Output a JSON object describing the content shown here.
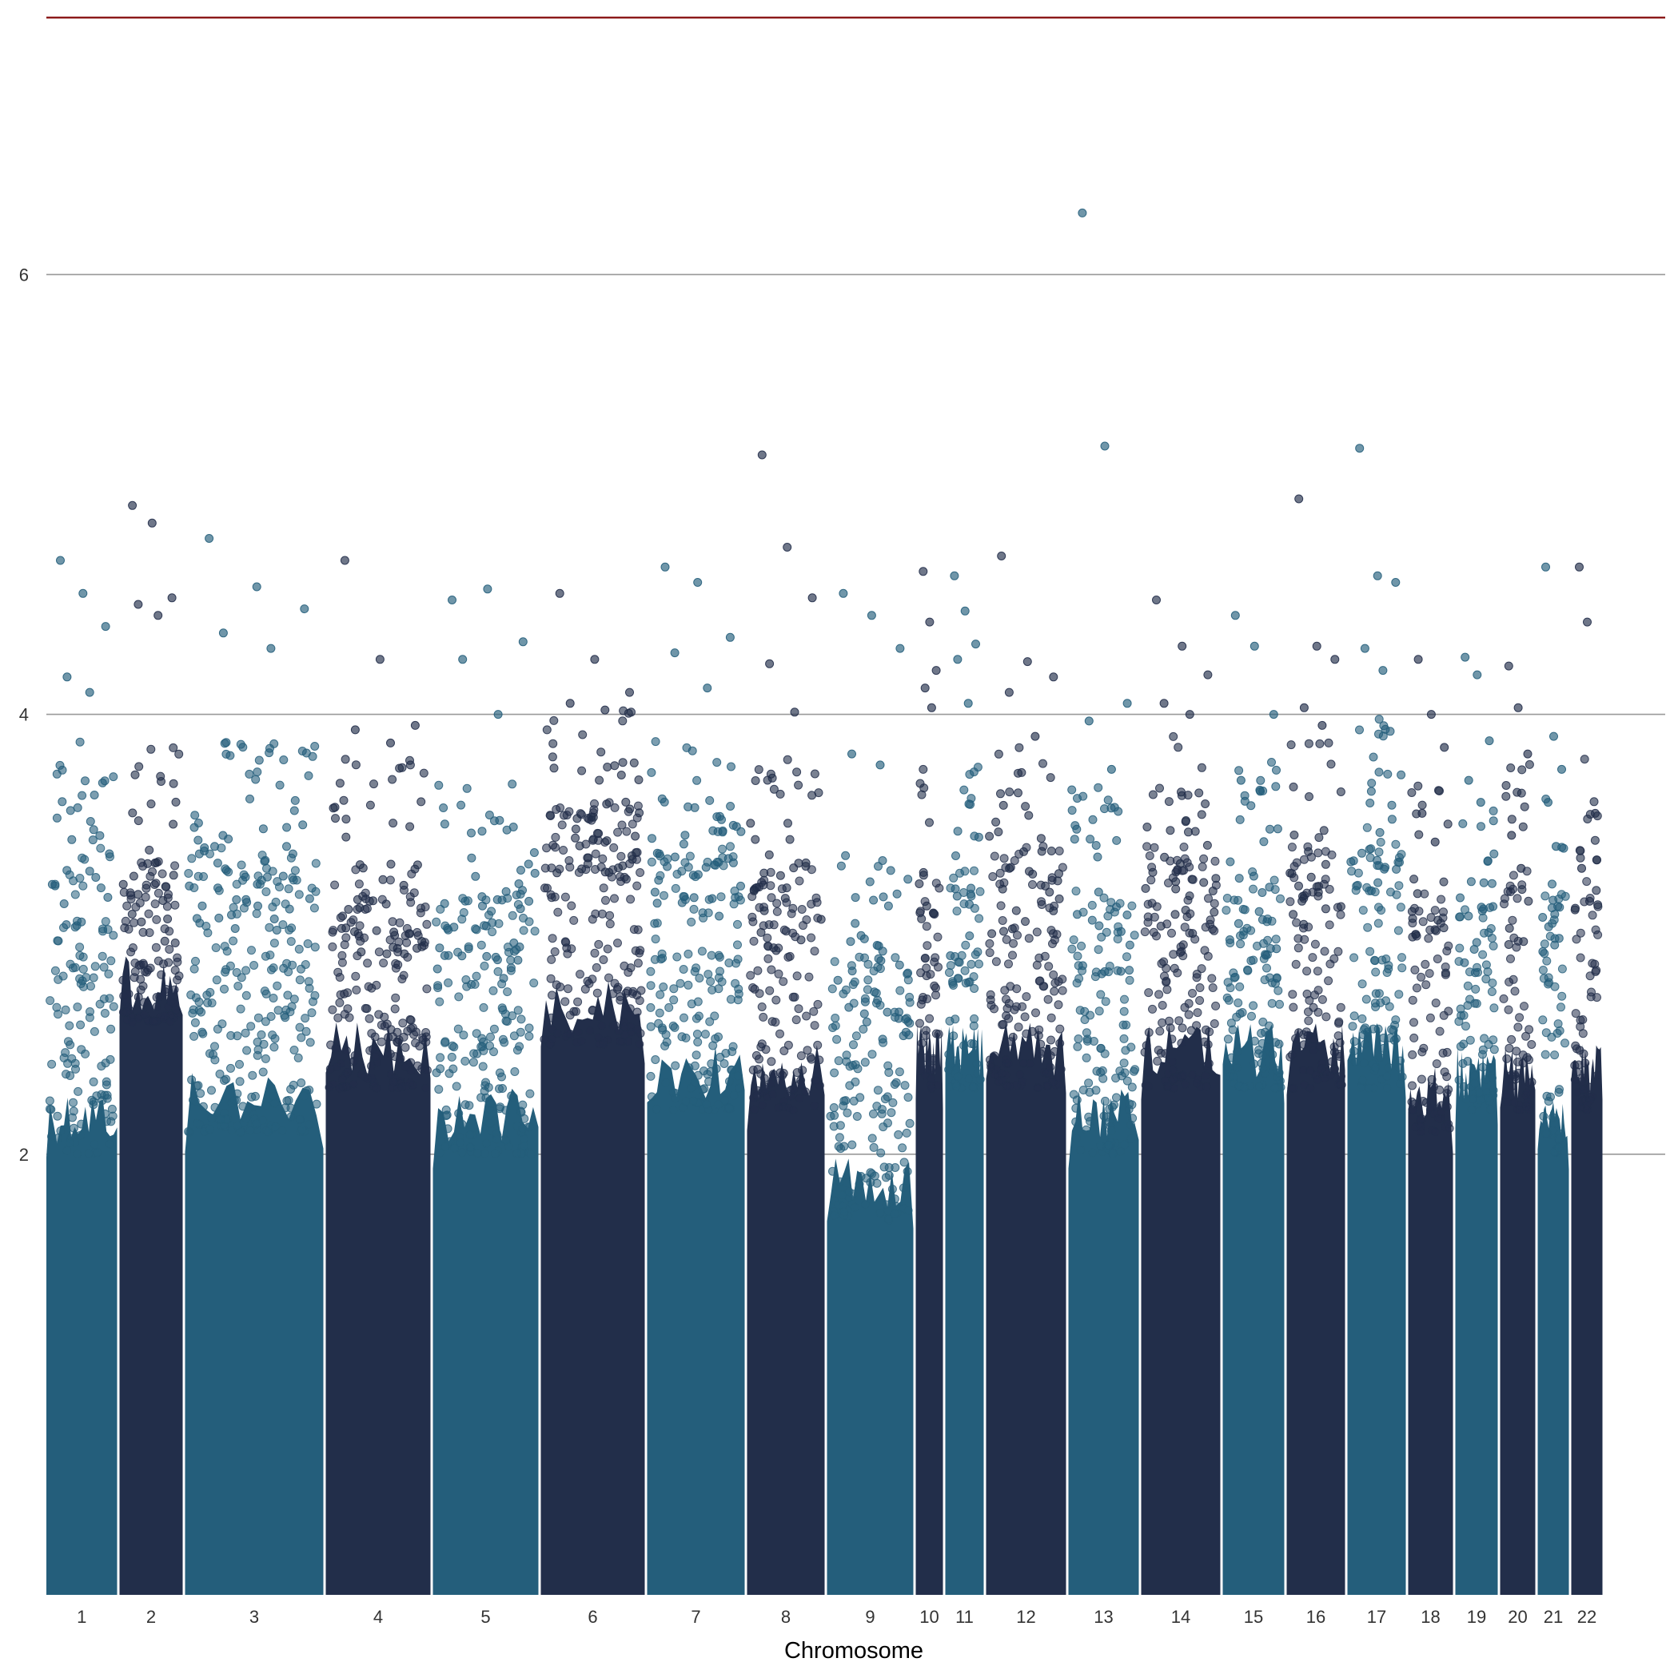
{
  "chart_data": {
    "type": "scatter",
    "subtype": "manhattan",
    "title": "",
    "xlabel": "Chromosome",
    "ylabel": "",
    "ylim": [
      0,
      7.2
    ],
    "yticks": [
      2,
      4,
      6
    ],
    "grid": "horizontal",
    "colors": {
      "odd": "#245E7B",
      "even": "#222E4A",
      "threshold": "#8B1A1A",
      "grid": "#999999"
    },
    "threshold": 7.3,
    "chromosomes": [
      {
        "label": "1",
        "band_top": 3.0,
        "dense_top": 2.3,
        "peaks": [
          4.7,
          4.55,
          4.4,
          4.17,
          4.1
        ]
      },
      {
        "label": "2",
        "band_top": 2.95,
        "dense_top": 2.9,
        "peaks": [
          4.95,
          4.87,
          4.53,
          4.5,
          4.45
        ]
      },
      {
        "label": "3",
        "band_top": 3.0,
        "dense_top": 2.4,
        "peaks": [
          4.8,
          4.58,
          4.48,
          4.37,
          4.3
        ]
      },
      {
        "label": "4",
        "band_top": 2.9,
        "dense_top": 2.6,
        "peaks": [
          4.7,
          4.25,
          3.95,
          3.93,
          3.87
        ]
      },
      {
        "label": "5",
        "band_top": 2.8,
        "dense_top": 2.3,
        "peaks": [
          4.52,
          4.57,
          4.33,
          4.25,
          4.0
        ]
      },
      {
        "label": "6",
        "band_top": 3.2,
        "dense_top": 2.8,
        "peaks": [
          4.55,
          4.25,
          4.1,
          4.05,
          4.02
        ]
      },
      {
        "label": "7",
        "band_top": 3.0,
        "dense_top": 2.5,
        "peaks": [
          4.67,
          4.6,
          4.35,
          4.28,
          4.12
        ]
      },
      {
        "label": "8",
        "band_top": 2.9,
        "dense_top": 2.5,
        "peaks": [
          5.18,
          4.76,
          4.53,
          4.23,
          4.01
        ]
      },
      {
        "label": "9",
        "band_top": 2.5,
        "dense_top": 2.0,
        "peaks": [
          4.55,
          4.45,
          4.3,
          3.82,
          3.77
        ]
      },
      {
        "label": "10",
        "band_top": 2.9,
        "dense_top": 2.6,
        "peaks": [
          4.65,
          4.42,
          4.2,
          4.12,
          4.03
        ]
      },
      {
        "label": "11",
        "band_top": 2.9,
        "dense_top": 2.6,
        "peaks": [
          4.63,
          4.47,
          4.32,
          4.25,
          4.05
        ]
      },
      {
        "label": "12",
        "band_top": 3.0,
        "dense_top": 2.6,
        "peaks": [
          4.72,
          4.24,
          4.17,
          4.1,
          3.9
        ]
      },
      {
        "label": "13",
        "band_top": 2.8,
        "dense_top": 2.3,
        "peaks": [
          6.28,
          5.22,
          4.05,
          3.97,
          3.75
        ]
      },
      {
        "label": "14",
        "band_top": 3.0,
        "dense_top": 2.6,
        "peaks": [
          4.52,
          4.31,
          4.18,
          4.05,
          4.0
        ]
      },
      {
        "label": "15",
        "band_top": 2.9,
        "dense_top": 2.6,
        "peaks": [
          4.45,
          4.31,
          4.0,
          3.7,
          3.65
        ]
      },
      {
        "label": "16",
        "band_top": 3.0,
        "dense_top": 2.6,
        "peaks": [
          4.98,
          4.31,
          4.25,
          4.03,
          3.95
        ]
      },
      {
        "label": "17",
        "band_top": 3.1,
        "dense_top": 2.6,
        "peaks": [
          5.21,
          4.63,
          4.6,
          4.3,
          4.2
        ]
      },
      {
        "label": "18",
        "band_top": 2.8,
        "dense_top": 2.4,
        "peaks": [
          4.25,
          4.0,
          3.85,
          3.55,
          3.42
        ]
      },
      {
        "label": "19",
        "band_top": 2.8,
        "dense_top": 2.5,
        "peaks": [
          4.26,
          4.18,
          3.88,
          3.7,
          3.6
        ]
      },
      {
        "label": "20",
        "band_top": 2.9,
        "dense_top": 2.5,
        "peaks": [
          4.22,
          4.03,
          3.82,
          3.45,
          3.3
        ]
      },
      {
        "label": "21",
        "band_top": 2.8,
        "dense_top": 2.3,
        "peaks": [
          4.67,
          3.9,
          3.75,
          3.6,
          3.4
        ]
      },
      {
        "label": "22",
        "band_top": 3.0,
        "dense_top": 2.5,
        "peaks": [
          4.67,
          4.42,
          3.55,
          3.3,
          3.15
        ]
      }
    ]
  }
}
